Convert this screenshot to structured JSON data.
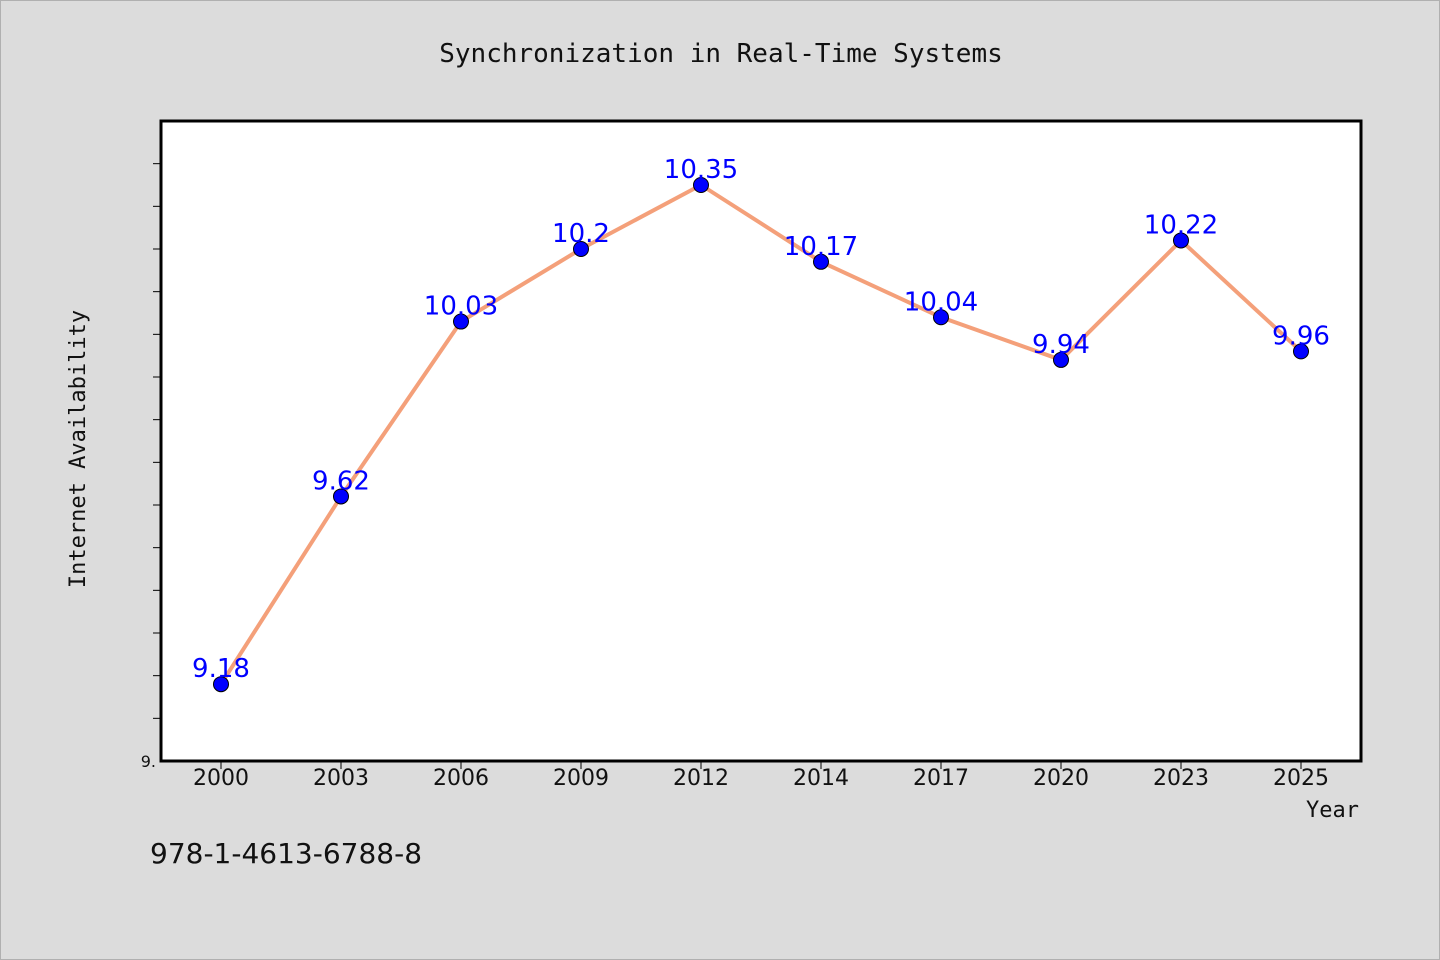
{
  "chart_data": {
    "type": "line",
    "title": "Synchronization in Real-Time Systems",
    "xlabel": "Year",
    "ylabel": "Internet Availability",
    "categories": [
      "2000",
      "2003",
      "2006",
      "2009",
      "2012",
      "2014",
      "2017",
      "2020",
      "2023",
      "2025"
    ],
    "series": [
      {
        "values": [
          9.18,
          9.62,
          10.03,
          10.2,
          10.35,
          10.17,
          10.04,
          9.94,
          10.22,
          9.96
        ]
      }
    ],
    "data_labels": [
      "9.18",
      "9.62",
      "10.03",
      "10.2",
      "10.35",
      "10.17",
      "10.04",
      "9.94",
      "10.22",
      "9.96"
    ],
    "ylim": [
      9.0,
      10.5
    ],
    "y_min_tick_label": "9.",
    "grid": false,
    "legend": "none",
    "footnote": "978-1-4613-6788-8",
    "colors": {
      "line": "#f4a07a",
      "marker": "#0000ff",
      "data_label": "#0000ff",
      "background": "#dcdcdc",
      "plot_background": "#ffffff"
    }
  }
}
